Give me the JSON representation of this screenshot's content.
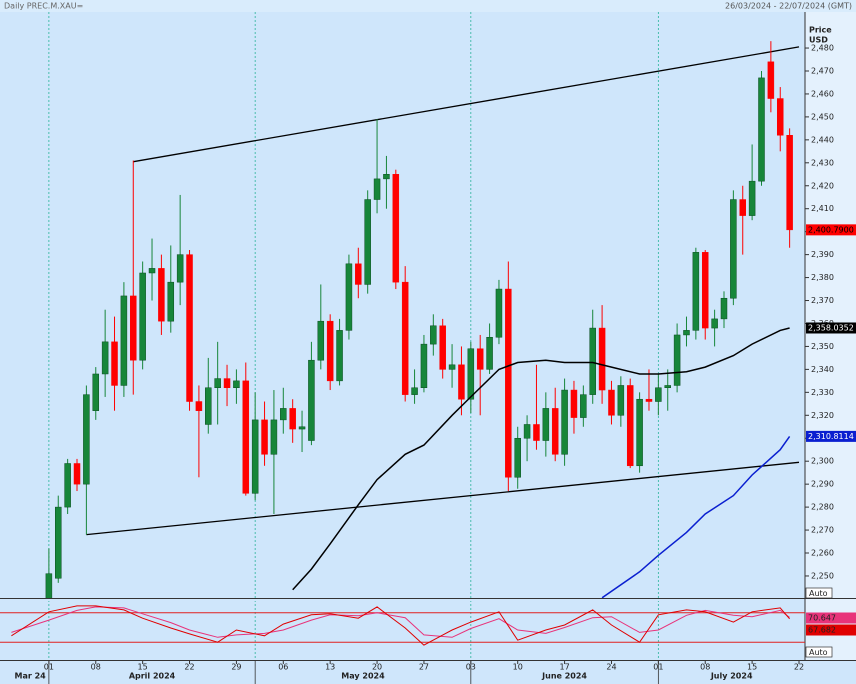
{
  "header": {
    "title": "Daily PREC.M.XAU=",
    "range": "26/03/2024 - 22/07/2024 (GMT)"
  },
  "chart_data": {
    "type": "candlestick",
    "y_axis_title": [
      "Price",
      "USD"
    ],
    "x": [
      "2024-04-01",
      "2024-04-02",
      "2024-04-03",
      "2024-04-04",
      "2024-04-05",
      "2024-04-08",
      "2024-04-09",
      "2024-04-10",
      "2024-04-11",
      "2024-04-12",
      "2024-04-15",
      "2024-04-16",
      "2024-04-17",
      "2024-04-18",
      "2024-04-19",
      "2024-04-22",
      "2024-04-23",
      "2024-04-24",
      "2024-04-25",
      "2024-04-26",
      "2024-04-29",
      "2024-04-30",
      "2024-05-01",
      "2024-05-02",
      "2024-05-03",
      "2024-05-06",
      "2024-05-07",
      "2024-05-08",
      "2024-05-09",
      "2024-05-10",
      "2024-05-13",
      "2024-05-14",
      "2024-05-15",
      "2024-05-16",
      "2024-05-17",
      "2024-05-20",
      "2024-05-21",
      "2024-05-22",
      "2024-05-23",
      "2024-05-24",
      "2024-05-27",
      "2024-05-28",
      "2024-05-29",
      "2024-05-30",
      "2024-05-31",
      "2024-06-03",
      "2024-06-04",
      "2024-06-05",
      "2024-06-06",
      "2024-06-07",
      "2024-06-10",
      "2024-06-11",
      "2024-06-12",
      "2024-06-13",
      "2024-06-14",
      "2024-06-17",
      "2024-06-18",
      "2024-06-19",
      "2024-06-20",
      "2024-06-21",
      "2024-06-24",
      "2024-06-25",
      "2024-06-26",
      "2024-06-27",
      "2024-06-28",
      "2024-07-01",
      "2024-07-02",
      "2024-07-03",
      "2024-07-04",
      "2024-07-05",
      "2024-07-08",
      "2024-07-09",
      "2024-07-10",
      "2024-07-11",
      "2024-07-12",
      "2024-07-15",
      "2024-07-16",
      "2024-07-17",
      "2024-07-18",
      "2024-07-19"
    ],
    "open": [
      2232,
      2249,
      2280,
      2299,
      2290,
      2322,
      2338,
      2352,
      2333,
      2372,
      2344,
      2382,
      2384,
      2361,
      2378,
      2390,
      2326,
      2316,
      2332,
      2336,
      2332,
      2335,
      2286,
      2318,
      2303,
      2318,
      2323,
      2314,
      2309,
      2344,
      2361,
      2335,
      2357,
      2386,
      2377,
      2414,
      2423,
      2425,
      2378,
      2329,
      2332,
      2351,
      2359,
      2340,
      2342,
      2327,
      2349,
      2340,
      2354,
      2375,
      2293,
      2310,
      2316,
      2309,
      2323,
      2303,
      2331,
      2319,
      2329,
      2358,
      2331,
      2320,
      2333,
      2298,
      2327,
      2326,
      2332,
      2333,
      2355,
      2357,
      2391,
      2358,
      2362,
      2371,
      2414,
      2407,
      2422,
      2474,
      2458,
      2442
    ],
    "high": [
      2262,
      2285,
      2301,
      2301,
      2333,
      2341,
      2366,
      2363,
      2378,
      2431,
      2387,
      2397,
      2390,
      2394,
      2416,
      2392,
      2333,
      2345,
      2352,
      2342,
      2340,
      2343,
      2330,
      2326,
      2331,
      2332,
      2327,
      2322,
      2352,
      2377,
      2364,
      2362,
      2390,
      2393,
      2418,
      2449,
      2433,
      2427,
      2385,
      2340,
      2355,
      2364,
      2362,
      2351,
      2350,
      2352,
      2355,
      2360,
      2379,
      2387,
      2315,
      2320,
      2342,
      2330,
      2332,
      2336,
      2335,
      2333,
      2366,
      2368,
      2335,
      2337,
      2336,
      2330,
      2340,
      2338,
      2340,
      2360,
      2363,
      2393,
      2392,
      2366,
      2374,
      2418,
      2420,
      2438,
      2470,
      2483,
      2463,
      2445
    ],
    "low": [
      2228,
      2247,
      2277,
      2287,
      2268,
      2318,
      2328,
      2322,
      2328,
      2329,
      2340,
      2370,
      2355,
      2356,
      2368,
      2322,
      2293,
      2312,
      2316,
      2324,
      2325,
      2285,
      2283,
      2298,
      2277,
      2312,
      2308,
      2304,
      2307,
      2340,
      2331,
      2333,
      2353,
      2371,
      2373,
      2408,
      2410,
      2375,
      2326,
      2325,
      2330,
      2346,
      2336,
      2332,
      2320,
      2321,
      2320,
      2338,
      2351,
      2287,
      2288,
      2300,
      2305,
      2302,
      2300,
      2298,
      2312,
      2315,
      2325,
      2325,
      2316,
      2315,
      2297,
      2295,
      2322,
      2320,
      2322,
      2330,
      2350,
      2353,
      2353,
      2350,
      2358,
      2368,
      2390,
      2405,
      2420,
      2452,
      2435,
      2393
    ],
    "close": [
      2251,
      2280,
      2299,
      2290,
      2329,
      2338,
      2352,
      2333,
      2372,
      2344,
      2382,
      2384,
      2361,
      2378,
      2390,
      2326,
      2322,
      2332,
      2336,
      2332,
      2335,
      2286,
      2318,
      2303,
      2318,
      2323,
      2314,
      2315,
      2344,
      2361,
      2335,
      2357,
      2386,
      2377,
      2414,
      2423,
      2425,
      2378,
      2329,
      2332,
      2351,
      2359,
      2340,
      2342,
      2327,
      2349,
      2340,
      2354,
      2375,
      2293,
      2310,
      2316,
      2309,
      2323,
      2303,
      2331,
      2319,
      2329,
      2358,
      2331,
      2320,
      2333,
      2298,
      2327,
      2326,
      2332,
      2333,
      2355,
      2357,
      2391,
      2358,
      2362,
      2371,
      2414,
      2407,
      2422,
      2467,
      2458,
      2442,
      2400.79
    ],
    "close_label": "2,400.7900",
    "up_color": "#17863a",
    "down_color": "#ff0000",
    "xlim": [
      "2024-03-25",
      "2024-07-22"
    ],
    "ylim": [
      2240.4,
      2495.7
    ],
    "yticks": [
      {
        "value": 2250,
        "label": "2,250"
      },
      {
        "value": 2260,
        "label": "2,260"
      },
      {
        "value": 2270,
        "label": "2,270"
      },
      {
        "value": 2280,
        "label": "2,280"
      },
      {
        "value": 2290,
        "label": "2,290"
      },
      {
        "value": 2300,
        "label": "2,300"
      },
      {
        "value": 2310,
        "label": "2,310"
      },
      {
        "value": 2320,
        "label": "2,320"
      },
      {
        "value": 2330,
        "label": "2,330"
      },
      {
        "value": 2340,
        "label": "2,340"
      },
      {
        "value": 2350,
        "label": "2,350"
      },
      {
        "value": 2360,
        "label": "2,360"
      },
      {
        "value": 2370,
        "label": "2,370"
      },
      {
        "value": 2380,
        "label": "2,380"
      },
      {
        "value": 2390,
        "label": "2,390"
      },
      {
        "value": 2400,
        "label": "2,400"
      },
      {
        "value": 2410,
        "label": "2,410"
      },
      {
        "value": 2420,
        "label": "2,420"
      },
      {
        "value": 2430,
        "label": "2,430"
      },
      {
        "value": 2440,
        "label": "2,440"
      },
      {
        "value": 2450,
        "label": "2,450"
      },
      {
        "value": 2460,
        "label": "2,460"
      },
      {
        "value": 2470,
        "label": "2,470"
      },
      {
        "value": 2480,
        "label": "2,480"
      }
    ],
    "xticks": [
      {
        "value": "2024-04-01",
        "label": "01"
      },
      {
        "value": "2024-04-08",
        "label": "08"
      },
      {
        "value": "2024-04-15",
        "label": "15"
      },
      {
        "value": "2024-04-22",
        "label": "22"
      },
      {
        "value": "2024-04-29",
        "label": "29"
      },
      {
        "value": "2024-05-06",
        "label": "06"
      },
      {
        "value": "2024-05-13",
        "label": "13"
      },
      {
        "value": "2024-05-20",
        "label": "20"
      },
      {
        "value": "2024-05-27",
        "label": "27"
      },
      {
        "value": "2024-06-03",
        "label": "03"
      },
      {
        "value": "2024-06-10",
        "label": "10"
      },
      {
        "value": "2024-06-17",
        "label": "17"
      },
      {
        "value": "2024-06-24",
        "label": "24"
      },
      {
        "value": "2024-07-01",
        "label": "01"
      },
      {
        "value": "2024-07-08",
        "label": "08"
      },
      {
        "value": "2024-07-15",
        "label": "15"
      },
      {
        "value": "2024-07-22",
        "label": "22"
      }
    ],
    "months": [
      {
        "label": "Mar 24",
        "start": "2024-03-26"
      },
      {
        "label": "April 2024",
        "start": "2024-04-01"
      },
      {
        "label": "May 2024",
        "start": "2024-05-01"
      },
      {
        "label": "June 2024",
        "start": "2024-06-03"
      },
      {
        "label": "July 2024",
        "start": "2024-07-01"
      }
    ],
    "trendlines": [
      {
        "color": "#000000",
        "x": [
          "2024-04-12",
          "2024-07-22"
        ],
        "values": [
          2430.5,
          2480.5
        ]
      },
      {
        "color": "#000000",
        "x": [
          "2024-04-05",
          "2024-07-22"
        ],
        "values": [
          2268,
          2299.5
        ]
      }
    ],
    "moving_averages": [
      {
        "color": "#000000",
        "value_label": "2,358.0352",
        "x": [
          "2024-05-07",
          "2024-05-09",
          "2024-05-13",
          "2024-05-16",
          "2024-05-20",
          "2024-05-23",
          "2024-05-27",
          "2024-05-30",
          "2024-06-03",
          "2024-06-06",
          "2024-06-10",
          "2024-06-13",
          "2024-06-17",
          "2024-06-20",
          "2024-06-24",
          "2024-06-27",
          "2024-07-01",
          "2024-07-04",
          "2024-07-08",
          "2024-07-11",
          "2024-07-15",
          "2024-07-18",
          "2024-07-19"
        ],
        "values": [
          2244,
          2253,
          2264,
          2281,
          2292,
          2303,
          2307,
          2320,
          2328,
          2340,
          2343,
          2344,
          2343,
          2343,
          2341,
          2338,
          2338,
          2339,
          2341,
          2346,
          2351,
          2357,
          2358.0352
        ]
      },
      {
        "color": "#0a1fd0",
        "value_label": "2,310.8114",
        "x": [
          "2024-06-21",
          "2024-06-27",
          "2024-07-01",
          "2024-07-04",
          "2024-07-08",
          "2024-07-11",
          "2024-07-15",
          "2024-07-18",
          "2024-07-19"
        ],
        "values": [
          2240.5,
          2251.8,
          2259,
          2269,
          2277,
          2285,
          2294,
          2305,
          2310.8114
        ]
      }
    ],
    "y_mode": "Auto",
    "oscillator": {
      "ylim": [
        0,
        100
      ],
      "levels": [
        20,
        80
      ],
      "level_color": "#e02020",
      "mode": "Auto",
      "x": [
        "2024-03-26",
        "2024-04-01",
        "2024-04-04",
        "2024-04-08",
        "2024-04-11",
        "2024-04-15",
        "2024-04-18",
        "2024-04-22",
        "2024-04-25",
        "2024-04-29",
        "2024-05-02",
        "2024-05-06",
        "2024-05-09",
        "2024-05-13",
        "2024-05-16",
        "2024-05-20",
        "2024-05-23",
        "2024-05-27",
        "2024-05-30",
        "2024-06-03",
        "2024-06-06",
        "2024-06-10",
        "2024-06-13",
        "2024-06-17",
        "2024-06-20",
        "2024-06-24",
        "2024-06-27",
        "2024-07-01",
        "2024-07-04",
        "2024-07-08",
        "2024-07-11",
        "2024-07-15",
        "2024-07-18",
        "2024-07-19"
      ],
      "series": [
        {
          "color": "#e8337a",
          "values": [
            40,
            65,
            85,
            92,
            90,
            78,
            60,
            45,
            30,
            35,
            38,
            45,
            65,
            76,
            74,
            80,
            70,
            35,
            30,
            48,
            68,
            45,
            38,
            50,
            70,
            72,
            40,
            45,
            75,
            85,
            75,
            72,
            85,
            70.647
          ]
        },
        {
          "color": "#e00000",
          "values": [
            33,
            82,
            94,
            94,
            86,
            69,
            49,
            37,
            20,
            45,
            33,
            57,
            76,
            78,
            69,
            92,
            49,
            14,
            45,
            61,
            82,
            24,
            45,
            55,
            86,
            55,
            20,
            76,
            86,
            82,
            61,
            82,
            90,
            67.682
          ]
        }
      ]
    }
  }
}
